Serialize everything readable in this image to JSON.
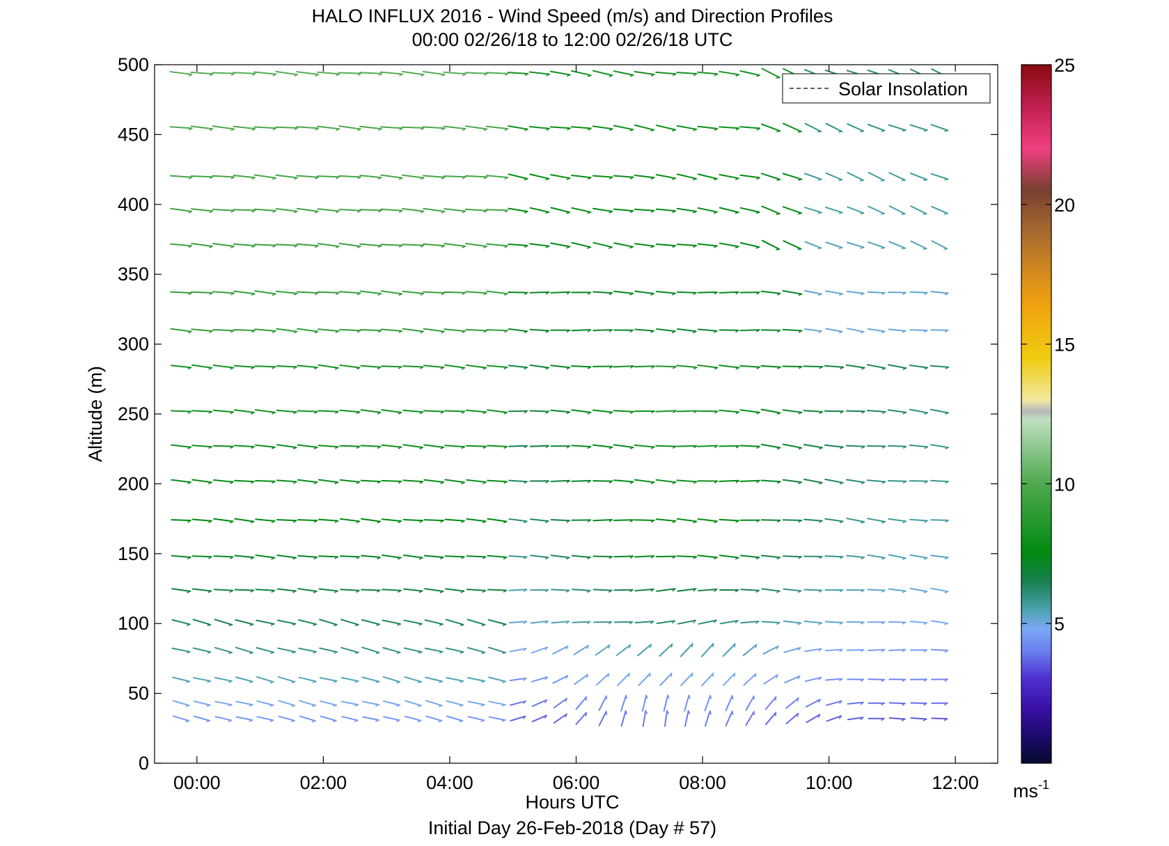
{
  "chart_data": {
    "type": "quiver",
    "title": "HALO INFLUX 2016 - Wind Speed (m/s) and Direction Profiles",
    "subtitle": "00:00 02/26/18 to 12:00 02/26/18  UTC",
    "xlabel": "Hours UTC",
    "footer": "Initial Day 26-Feb-2018 (Day # 57)",
    "ylabel": "Altitude (m)",
    "xlim": [
      -0.67,
      12.67
    ],
    "ylim": [
      0,
      500
    ],
    "x_ticks": [
      0,
      2,
      4,
      6,
      8,
      10,
      12
    ],
    "x_tick_labels": [
      "00:00",
      "02:00",
      "04:00",
      "06:00",
      "08:00",
      "10:00",
      "12:00"
    ],
    "y_ticks": [
      0,
      50,
      100,
      150,
      200,
      250,
      300,
      350,
      400,
      450,
      500
    ],
    "y_tick_labels": [
      "0",
      "50",
      "100",
      "150",
      "200",
      "250",
      "300",
      "350",
      "400",
      "450",
      "500"
    ],
    "legend": {
      "entries": [
        "Solar Insolation"
      ],
      "position": "top-right",
      "line_style": "dashed"
    },
    "colorbar": {
      "label": "ms-1",
      "label_base": "ms",
      "label_sup": "-1",
      "range": [
        0,
        25
      ],
      "ticks": [
        5,
        10,
        15,
        20,
        25
      ],
      "tick_labels": [
        "5",
        "10",
        "15",
        "20",
        "25"
      ],
      "colormap": [
        [
          0,
          "#050a30"
        ],
        [
          1,
          "#1e0a6e"
        ],
        [
          2,
          "#3a10a8"
        ],
        [
          3,
          "#4e2ed0"
        ],
        [
          4,
          "#6a7ef0"
        ],
        [
          4.8,
          "#7aa8f5"
        ],
        [
          5.5,
          "#4ba2b0"
        ],
        [
          6.5,
          "#188050"
        ],
        [
          7.5,
          "#008a10"
        ],
        [
          10,
          "#4ea84e"
        ],
        [
          12.3,
          "#c0e0c0"
        ],
        [
          12.6,
          "#b8b8b8"
        ],
        [
          13,
          "#f0e8a0"
        ],
        [
          14.5,
          "#f0cc10"
        ],
        [
          16.5,
          "#f0a010"
        ],
        [
          19,
          "#a86a30"
        ],
        [
          20.5,
          "#784030"
        ],
        [
          22,
          "#f04080"
        ],
        [
          23.5,
          "#c02050"
        ],
        [
          25,
          "#8a0a10"
        ]
      ]
    },
    "vector_field": {
      "times": [
        -0.25,
        0.08,
        0.42,
        0.75,
        1.08,
        1.42,
        1.75,
        2.08,
        2.42,
        2.75,
        3.08,
        3.42,
        3.75,
        4.08,
        4.42,
        4.75,
        5.08,
        5.42,
        5.75,
        6.08,
        6.42,
        6.75,
        7.08,
        7.42,
        7.75,
        8.08,
        8.42,
        8.75,
        9.08,
        9.42,
        9.75,
        10.08,
        10.42,
        10.75,
        11.08,
        11.42,
        11.75
      ],
      "altitudes": [
        32,
        43,
        60,
        81,
        101,
        124,
        148,
        174,
        202,
        227,
        252,
        284,
        310,
        337,
        371,
        396,
        420,
        455,
        494
      ],
      "units": "m/s",
      "description": "wind vectors; speed = color, direction = arrow angle",
      "max_time_per_altitude": [
        11.75,
        11.75,
        11.75,
        11.75,
        11.75,
        11.75,
        11.75,
        11.75,
        11.75,
        11.75,
        11.75,
        11.75,
        11.75,
        11.75,
        11.75,
        11.75,
        11.75,
        11.75,
        11.75
      ]
    }
  }
}
